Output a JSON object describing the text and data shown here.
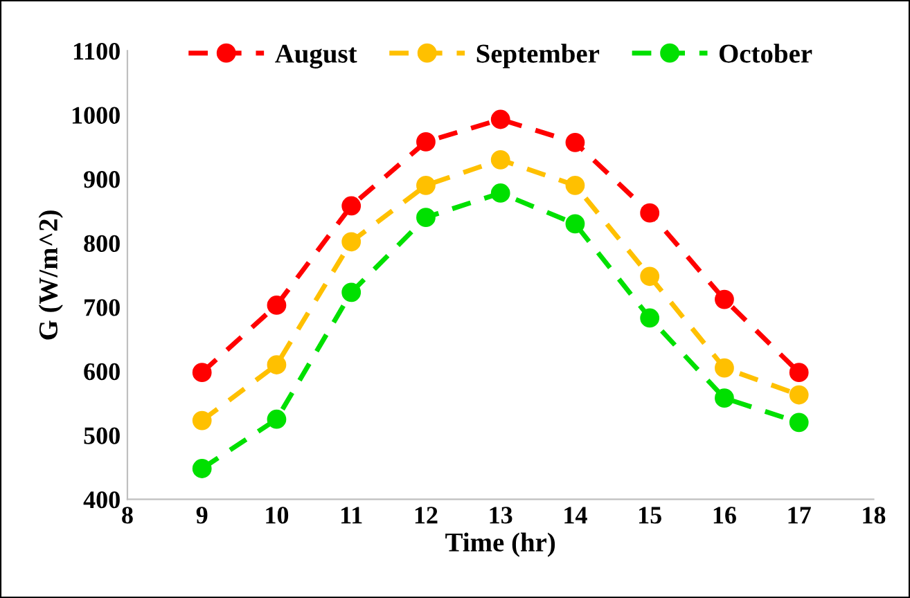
{
  "chart_data": {
    "type": "line",
    "xlabel": "Time (hr)",
    "ylabel": "G (W/m^2)",
    "x": [
      9,
      10,
      11,
      12,
      13,
      14,
      15,
      16,
      17
    ],
    "series": [
      {
        "name": "August",
        "color": "#ff0000",
        "values": [
          598,
          703,
          858,
          958,
          993,
          957,
          847,
          712,
          598
        ]
      },
      {
        "name": "September",
        "color": "#ffc000",
        "values": [
          523,
          610,
          802,
          890,
          930,
          890,
          748,
          605,
          563
        ]
      },
      {
        "name": "October",
        "color": "#00e000",
        "values": [
          448,
          525,
          723,
          840,
          878,
          830,
          683,
          558,
          520
        ]
      }
    ],
    "xlim": [
      8,
      18
    ],
    "xticks": [
      8,
      9,
      10,
      11,
      12,
      13,
      14,
      15,
      16,
      17,
      18
    ],
    "ylim": [
      400,
      1100
    ],
    "yticks": [
      400,
      500,
      600,
      700,
      800,
      900,
      1000,
      1100
    ],
    "grid": false,
    "legend": "top",
    "marker": "circle",
    "line_style": "dashed"
  }
}
